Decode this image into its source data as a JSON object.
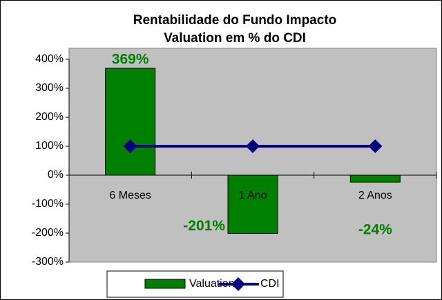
{
  "chart_data": {
    "type": "bar",
    "title": [
      "Rentabilidade do Fundo Impacto",
      "Valuation em % do CDI"
    ],
    "categories": [
      "6 Meses",
      "1 Ano",
      "2 Anos"
    ],
    "series": [
      {
        "name": "Valuation",
        "type": "bar",
        "color": "#008000",
        "values": [
          369,
          -201,
          -24
        ],
        "value_labels": [
          "369%",
          "-201%",
          "-24%"
        ]
      },
      {
        "name": "CDI",
        "type": "line",
        "color": "#000080",
        "values": [
          100,
          100,
          100
        ]
      }
    ],
    "ylim": [
      -300,
      400
    ],
    "yticks": [
      {
        "value": -300,
        "label": "-300%"
      },
      {
        "value": -200,
        "label": "-200%"
      },
      {
        "value": -100,
        "label": "-100%"
      },
      {
        "value": 0,
        "label": "0%"
      },
      {
        "value": 100,
        "label": "100%"
      },
      {
        "value": 200,
        "label": "200%"
      },
      {
        "value": 300,
        "label": "300%"
      },
      {
        "value": 400,
        "label": "400%"
      }
    ],
    "grid": false,
    "legend": "bottom"
  }
}
